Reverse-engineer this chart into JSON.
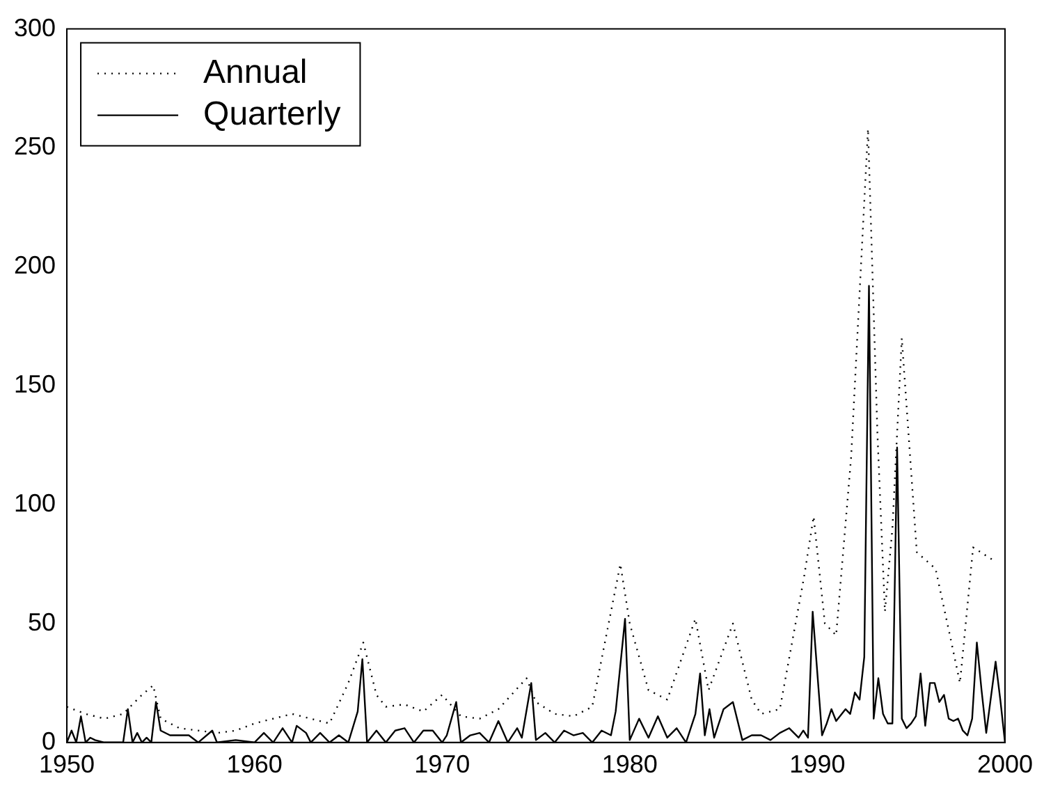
{
  "chart_data": {
    "type": "line",
    "xlim": [
      1950,
      2000
    ],
    "xticks": [
      1950,
      1960,
      1970,
      1980,
      1990,
      2000
    ],
    "ylim": [
      0,
      300
    ],
    "yticks": [
      0,
      50,
      100,
      150,
      200,
      250,
      300
    ],
    "grid": false,
    "legend": "top left",
    "marker": "none",
    "series": [
      {
        "name": "Annual",
        "color": "#000000",
        "line_style": "dotted",
        "x": [
          1950,
          1951,
          1952,
          1953,
          1954,
          1954.6,
          1955,
          1956,
          1957,
          1958,
          1959,
          1960,
          1961,
          1962,
          1963,
          1964,
          1965,
          1965.8,
          1966.5,
          1967,
          1968,
          1969,
          1970,
          1971,
          1972,
          1973,
          1974.5,
          1975,
          1976,
          1977,
          1978,
          1979.5,
          1980,
          1981,
          1982,
          1983.5,
          1984.2,
          1985.5,
          1986.5,
          1987,
          1988,
          1989.3,
          1989.8,
          1990.4,
          1991,
          1991.8,
          1992.7,
          1993.2,
          1993.6,
          1994,
          1994.5,
          1995.3,
          1996.3,
          1997.2,
          1997.6,
          1998.3,
          1999.3
        ],
        "values": [
          15,
          12,
          10,
          12,
          20,
          24,
          10,
          6,
          5,
          4,
          5,
          8,
          10,
          12,
          10,
          8,
          25,
          42,
          20,
          15,
          16,
          13,
          20,
          11,
          10,
          14,
          27,
          17,
          12,
          11,
          15,
          75,
          50,
          22,
          18,
          52,
          22,
          50,
          18,
          12,
          14,
          70,
          95,
          50,
          45,
          120,
          258,
          130,
          55,
          90,
          170,
          80,
          73,
          40,
          25,
          82,
          77
        ]
      },
      {
        "name": "Quarterly",
        "color": "#000000",
        "line_style": "solid",
        "x": [
          1950,
          1950.25,
          1950.5,
          1950.75,
          1951,
          1951.25,
          1951.5,
          1952,
          1953,
          1953.25,
          1953.5,
          1953.75,
          1954,
          1954.25,
          1954.5,
          1954.75,
          1955,
          1955.5,
          1956.5,
          1957,
          1957.75,
          1958,
          1959,
          1960,
          1960.5,
          1961,
          1961.5,
          1962,
          1962.25,
          1962.75,
          1963,
          1963.5,
          1964,
          1964.5,
          1965,
          1965.5,
          1965.75,
          1966,
          1966.5,
          1967,
          1967.5,
          1968,
          1968.5,
          1969,
          1969.5,
          1970,
          1970.25,
          1970.75,
          1971,
          1971.5,
          1972,
          1972.5,
          1973,
          1973.5,
          1974,
          1974.25,
          1974.75,
          1975,
          1975.5,
          1976,
          1976.5,
          1977,
          1977.5,
          1978,
          1978.5,
          1979,
          1979.25,
          1979.75,
          1980,
          1980.5,
          1981,
          1981.5,
          1982,
          1982.5,
          1983,
          1983.5,
          1983.75,
          1984,
          1984.25,
          1984.5,
          1985,
          1985.5,
          1986,
          1986.5,
          1987,
          1987.5,
          1988,
          1988.5,
          1989,
          1989.25,
          1989.5,
          1989.75,
          1990.25,
          1990.5,
          1990.75,
          1991,
          1991.5,
          1991.75,
          1992,
          1992.25,
          1992.5,
          1992.75,
          1993,
          1993.25,
          1993.5,
          1993.75,
          1994,
          1994.25,
          1994.5,
          1994.75,
          1995,
          1995.25,
          1995.5,
          1995.75,
          1996,
          1996.25,
          1996.5,
          1996.75,
          1997,
          1997.25,
          1997.5,
          1997.75,
          1998,
          1998.25,
          1998.5,
          1998.75,
          1999,
          1999.5,
          1999.75,
          2000
        ],
        "values": [
          0,
          5,
          0,
          11,
          0,
          2,
          1,
          0,
          0,
          14,
          0,
          4,
          0,
          2,
          0,
          17,
          5,
          3,
          3,
          0,
          5,
          0,
          1,
          0,
          4,
          0,
          6,
          0,
          7,
          4,
          0,
          4,
          0,
          3,
          0,
          13,
          35,
          0,
          5,
          0,
          5,
          6,
          0,
          5,
          5,
          0,
          3,
          17,
          0,
          3,
          4,
          0,
          9,
          0,
          6,
          2,
          25,
          1,
          4,
          0,
          5,
          3,
          4,
          0,
          5,
          3,
          13,
          52,
          1,
          10,
          2,
          11,
          2,
          6,
          0,
          12,
          29,
          3,
          14,
          2,
          14,
          17,
          1,
          3,
          3,
          1,
          4,
          6,
          2,
          5,
          2,
          55,
          3,
          8,
          14,
          9,
          14,
          12,
          21,
          18,
          36,
          192,
          10,
          27,
          12,
          8,
          8,
          124,
          10,
          6,
          8,
          11,
          29,
          7,
          25,
          25,
          17,
          20,
          10,
          9,
          10,
          5,
          3,
          10,
          42,
          22,
          4,
          34,
          18,
          0
        ]
      }
    ]
  }
}
